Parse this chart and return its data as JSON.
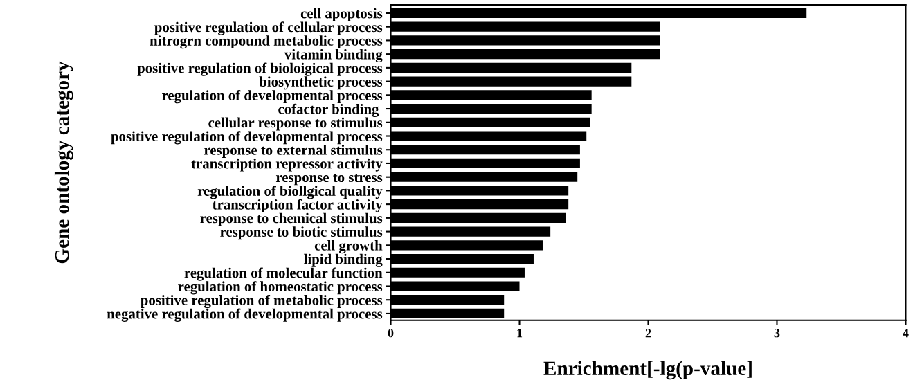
{
  "chart_data": {
    "type": "bar",
    "orientation": "horizontal",
    "xlabel": "Enrichment[-lg(p-value]",
    "ylabel": "Gene ontology category",
    "categories": [
      "cell apoptosis",
      "positive regulation of cellular process",
      "nitrogrn compound metabolic process",
      "vitamin binding",
      "positive regulation of bioloigical process",
      "biosynthetic process",
      "regulation of developmental process",
      "cofactor binding ",
      "cellular response to stimulus",
      "positive regulation of developmental process",
      "response to external stimulus",
      "transcription repressor activity",
      "response to stress",
      "regulation of biollgical quality",
      "transcription factor activity",
      "response to chemical stimulus",
      "response to biotic stimulus",
      "cell growth",
      "lipid binding",
      "regulation of molecular function",
      "regulation of homeostatic process",
      "positive regulation of metabolic process",
      "negative regulation of developmental process"
    ],
    "values": [
      3.23,
      2.09,
      2.09,
      2.09,
      1.87,
      1.87,
      1.56,
      1.56,
      1.55,
      1.52,
      1.47,
      1.47,
      1.45,
      1.38,
      1.38,
      1.36,
      1.24,
      1.18,
      1.11,
      1.04,
      1.0,
      0.88,
      0.88
    ],
    "color": "#000000",
    "xlim": [
      0,
      4
    ],
    "xticks": [
      0,
      1,
      2,
      3,
      4
    ],
    "grid": false,
    "legend": false
  }
}
